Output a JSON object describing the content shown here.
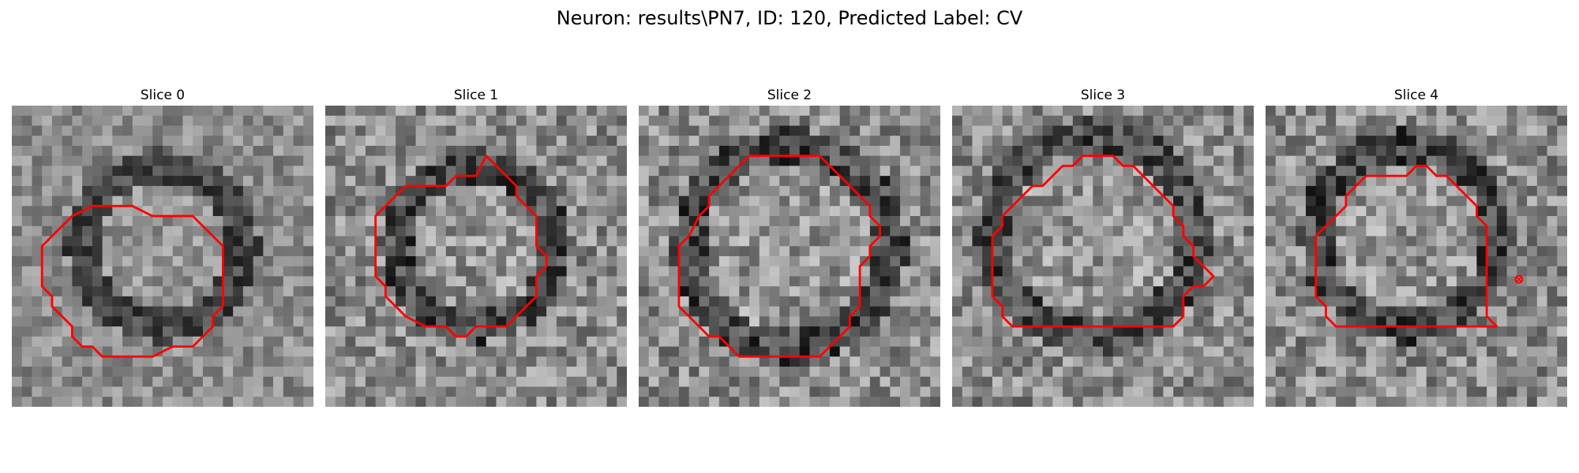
{
  "figure": {
    "title": "Neuron: results\\PN7, ID: 120, Predicted Label: CV",
    "contour_color": "#ff0000",
    "marker_color": "#ff0000"
  },
  "slices": [
    {
      "title": "Slice 0",
      "seed": 11,
      "center": [
        15,
        14
      ],
      "radius": 8,
      "contrast": "medium"
    },
    {
      "title": "Slice 1",
      "seed": 23,
      "center": [
        15,
        14
      ],
      "radius": 8,
      "contrast": "high"
    },
    {
      "title": "Slice 2",
      "seed": 37,
      "center": [
        15,
        14
      ],
      "radius": 10,
      "contrast": "high"
    },
    {
      "title": "Slice 3",
      "seed": 41,
      "center": [
        14,
        13
      ],
      "radius": 10,
      "contrast": "high"
    },
    {
      "title": "Slice 4",
      "seed": 53,
      "center": [
        14,
        13
      ],
      "radius": 9,
      "contrast": "high",
      "has_marker": true
    }
  ]
}
